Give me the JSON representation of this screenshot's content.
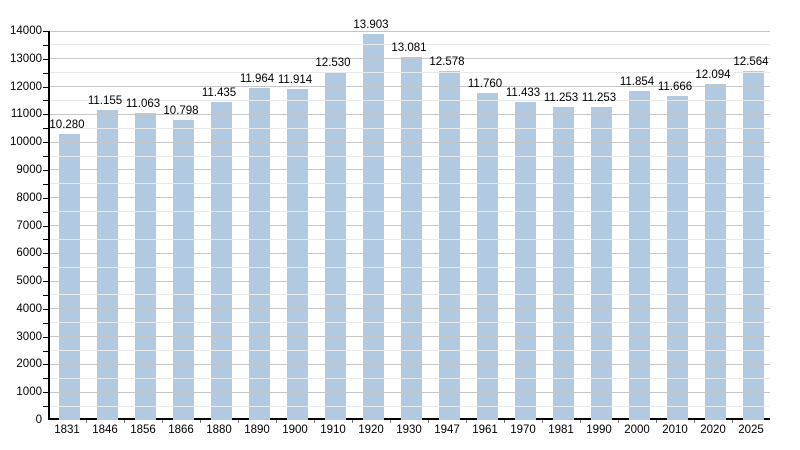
{
  "chart_data": {
    "type": "bar",
    "title": "",
    "xlabel": "",
    "ylabel": "",
    "categories": [
      "1831",
      "1846",
      "1856",
      "1866",
      "1880",
      "1890",
      "1900",
      "1910",
      "1920",
      "1930",
      "1947",
      "1961",
      "1970",
      "1981",
      "1990",
      "2000",
      "2010",
      "2020",
      "2025"
    ],
    "values": [
      10280,
      11155,
      11063,
      10798,
      11435,
      11964,
      11914,
      12530,
      13903,
      13081,
      12578,
      11760,
      11433,
      11253,
      11253,
      11854,
      11666,
      12094,
      12564
    ],
    "value_labels": [
      "10.280",
      "11.155",
      "11.063",
      "10.798",
      "11.435",
      "11.964",
      "11.914",
      "12.530",
      "13.903",
      "13.081",
      "12.578",
      "11.760",
      "11.433",
      "11.253",
      "11.253",
      "11.854",
      "11.666",
      "12.094",
      "12.564"
    ],
    "ylim": [
      0,
      14000
    ],
    "y_major_step": 1000,
    "y_minor_step": 500,
    "y_tick_labels": [
      "0",
      "1000",
      "2000",
      "3000",
      "4000",
      "5000",
      "6000",
      "7000",
      "8000",
      "9000",
      "10000",
      "11000",
      "12000",
      "13000",
      "14000"
    ],
    "grid": true,
    "legend_position": "none",
    "bar_color": "#b1cae2",
    "major_grid_color": "#c6c6c6",
    "minor_grid_color": "#e9e9e9",
    "axis_color": "#000000",
    "background_color": "#ffffff"
  }
}
